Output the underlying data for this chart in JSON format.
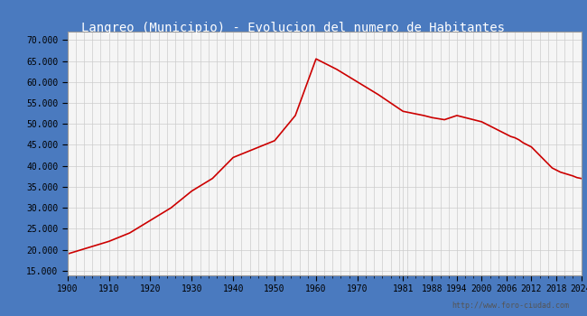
{
  "title": "Langreo (Municipio) - Evolucion del numero de Habitantes",
  "title_bg_color": "#4a7abf",
  "title_text_color": "#ffffff",
  "plot_bg_color": "#f5f5f5",
  "outer_bg_color": "#4a7abf",
  "line_color": "#cc0000",
  "watermark": "http://www.foro-ciudad.com",
  "ytick_labels": [
    "15.000",
    "20.000",
    "25.000",
    "30.000",
    "35.000",
    "40.000",
    "45.000",
    "50.000",
    "55.000",
    "60.000",
    "65.000",
    "70.000"
  ],
  "ytick_values": [
    15000,
    20000,
    25000,
    30000,
    35000,
    40000,
    45000,
    50000,
    55000,
    60000,
    65000,
    70000
  ],
  "ylim": [
    14000,
    72000
  ],
  "xtick_labels": [
    "1900",
    "1910",
    "1920",
    "1930",
    "1940",
    "1950",
    "1960",
    "1970",
    "1981",
    "1988",
    "1994",
    "2000",
    "2006",
    "2012",
    "2018",
    "2024"
  ],
  "xtick_values": [
    1900,
    1910,
    1920,
    1930,
    1940,
    1950,
    1960,
    1970,
    1981,
    1988,
    1994,
    2000,
    2006,
    2012,
    2018,
    2024
  ],
  "years": [
    1900,
    1905,
    1910,
    1915,
    1920,
    1925,
    1930,
    1935,
    1940,
    1945,
    1950,
    1955,
    1960,
    1965,
    1970,
    1975,
    1981,
    1986,
    1988,
    1991,
    1994,
    1996,
    1998,
    2000,
    2001,
    2002,
    2003,
    2004,
    2005,
    2006,
    2007,
    2008,
    2009,
    2010,
    2011,
    2012,
    2013,
    2014,
    2015,
    2016,
    2017,
    2018,
    2019,
    2020,
    2021,
    2022,
    2023,
    2024
  ],
  "population": [
    19000,
    20500,
    22000,
    24000,
    27000,
    30000,
    34000,
    37000,
    42000,
    44000,
    46000,
    52000,
    65500,
    63000,
    60000,
    57000,
    53000,
    52000,
    51500,
    51000,
    52000,
    51500,
    51000,
    50500,
    50000,
    49500,
    49000,
    48500,
    48000,
    47500,
    47000,
    46700,
    46200,
    45500,
    45000,
    44500,
    43500,
    42500,
    41500,
    40500,
    39500,
    39000,
    38500,
    38200,
    37900,
    37600,
    37200,
    37000
  ]
}
